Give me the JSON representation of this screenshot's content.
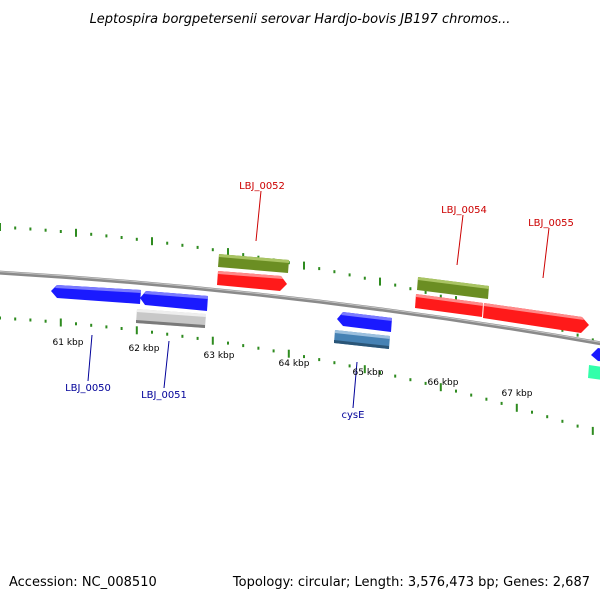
{
  "title": "Leptospira borgpetersenii serovar Hardjo-bovis JB197 chromos...",
  "footer": {
    "accession": "Accession: NC_008510",
    "topology": "Topology: circular; Length: 3,576,473 bp; Genes: 2,687"
  },
  "colors": {
    "backbone": "#8a8a8a",
    "tick": "#2e8b1f",
    "forward_label": "#cc0000",
    "reverse_label": "#000099",
    "red": "#ff1a1a",
    "olive": "#6b8e23",
    "blue": "#1a1aff",
    "grey": "#c8c8c8",
    "steel": "#4682b4",
    "aqua": "#33ffaa"
  },
  "ticks": [
    "61 kbp",
    "62 kbp",
    "63 kbp",
    "64 kbp",
    "65 kbp",
    "66 kbp",
    "67 kbp"
  ],
  "genes_forward": [
    {
      "name": "LBJ_0052",
      "label": "LBJ_0052"
    },
    {
      "name": "LBJ_0054",
      "label": "LBJ_0054"
    },
    {
      "name": "LBJ_0055",
      "label": "LBJ_0055"
    }
  ],
  "genes_reverse": [
    {
      "name": "LBJ_0050",
      "label": "LBJ_0050"
    },
    {
      "name": "LBJ_0051",
      "label": "LBJ_0051"
    },
    {
      "name": "cysE",
      "label": "cysE"
    }
  ]
}
